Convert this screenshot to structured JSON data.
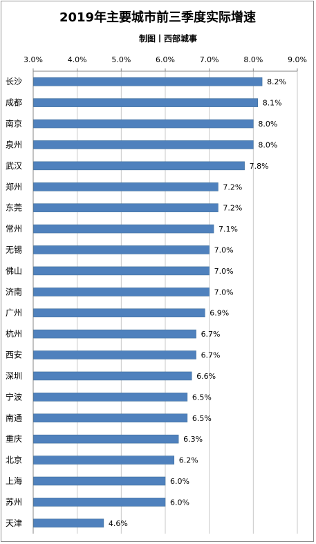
{
  "chart_data": {
    "type": "bar",
    "orientation": "horizontal",
    "title": "2019年主要城市前三季度实际增速",
    "subtitle": "制图丨西部城事",
    "xlim": [
      0.03,
      0.09
    ],
    "ticks": [
      "3.0%",
      "4.0%",
      "5.0%",
      "6.0%",
      "7.0%",
      "8.0%",
      "9.0%"
    ],
    "tick_values": [
      0.03,
      0.04,
      0.05,
      0.06,
      0.07,
      0.08,
      0.09
    ],
    "axis_position": "top",
    "grid": "vertical",
    "bar_color": "#4f81bd",
    "categories": [
      "长沙",
      "成都",
      "南京",
      "泉州",
      "武汉",
      "郑州",
      "东莞",
      "常州",
      "无锡",
      "佛山",
      "济南",
      "广州",
      "杭州",
      "西安",
      "深圳",
      "宁波",
      "南通",
      "重庆",
      "北京",
      "上海",
      "苏州",
      "天津"
    ],
    "values": [
      0.082,
      0.081,
      0.08,
      0.08,
      0.078,
      0.072,
      0.072,
      0.071,
      0.07,
      0.07,
      0.07,
      0.069,
      0.067,
      0.067,
      0.066,
      0.065,
      0.065,
      0.063,
      0.062,
      0.06,
      0.06,
      0.046
    ],
    "labels": [
      "8.2%",
      "8.1%",
      "8.0%",
      "8.0%",
      "7.8%",
      "7.2%",
      "7.2%",
      "7.1%",
      "7.0%",
      "7.0%",
      "7.0%",
      "6.9%",
      "6.7%",
      "6.7%",
      "6.6%",
      "6.5%",
      "6.5%",
      "6.3%",
      "6.2%",
      "6.0%",
      "6.0%",
      "4.6%"
    ]
  }
}
